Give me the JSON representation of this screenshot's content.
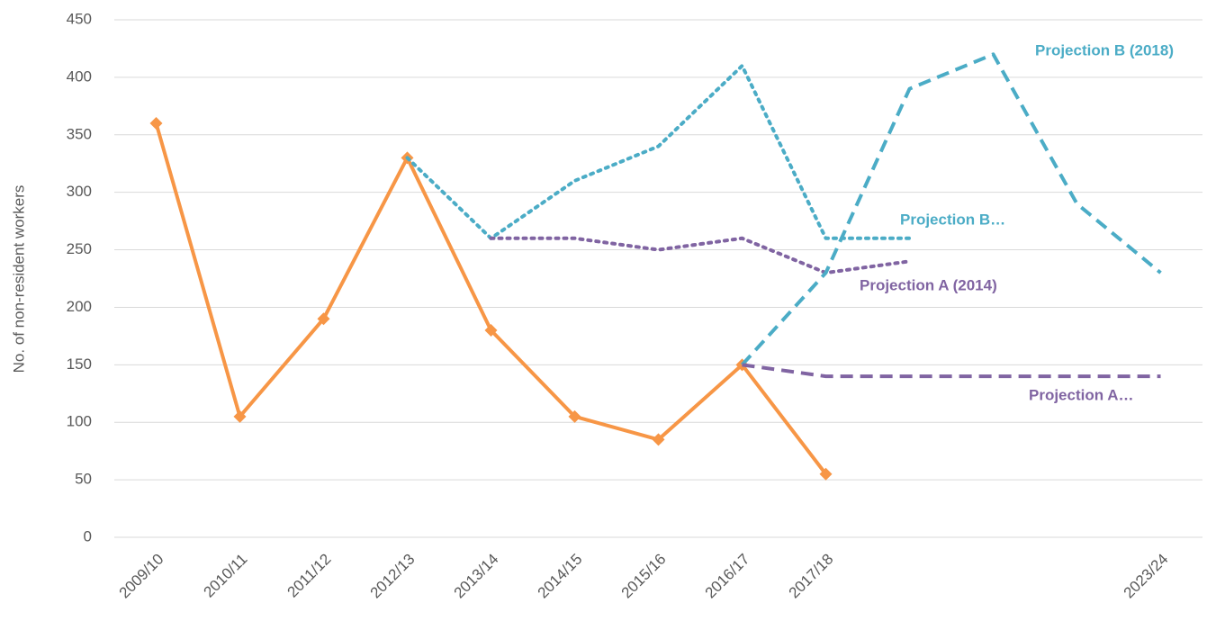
{
  "chart_data": {
    "type": "line",
    "y_label": "No. of non-resident workers",
    "categories": [
      "2009/10",
      "2010/11",
      "2011/12",
      "2012/13",
      "2013/14",
      "2014/15",
      "2015/16",
      "2016/17",
      "2017/18",
      null,
      null,
      null,
      "2023/24"
    ],
    "series": [
      {
        "color": "#F79646",
        "style": "solid",
        "marker": "diamond",
        "values": [
          360,
          105,
          190,
          330,
          180,
          105,
          85,
          150,
          55,
          null,
          null,
          null,
          null
        ]
      },
      {
        "name": "Projection B…",
        "color": "#4BACC6",
        "style": "dotted",
        "values": [
          null,
          null,
          null,
          330,
          260,
          310,
          340,
          410,
          260,
          260,
          null,
          null,
          null
        ]
      },
      {
        "name": "Projection A (2014)",
        "color": "#8064A2",
        "style": "dotted",
        "values": [
          null,
          null,
          null,
          null,
          260,
          260,
          250,
          260,
          230,
          240,
          null,
          null,
          null
        ]
      },
      {
        "name": "Projection B (2018)",
        "color": "#4BACC6",
        "style": "dashed",
        "values": [
          null,
          null,
          null,
          null,
          null,
          null,
          null,
          150,
          230,
          390,
          420,
          290,
          230
        ]
      },
      {
        "name": "Projection A…",
        "color": "#8064A2",
        "style": "dashed",
        "values": [
          null,
          null,
          null,
          null,
          null,
          null,
          null,
          150,
          140,
          140,
          140,
          140,
          140
        ]
      }
    ],
    "ylim": [
      0,
      450
    ],
    "yticks": [
      0,
      50,
      100,
      150,
      200,
      250,
      300,
      350,
      400,
      450
    ],
    "grid": true
  }
}
